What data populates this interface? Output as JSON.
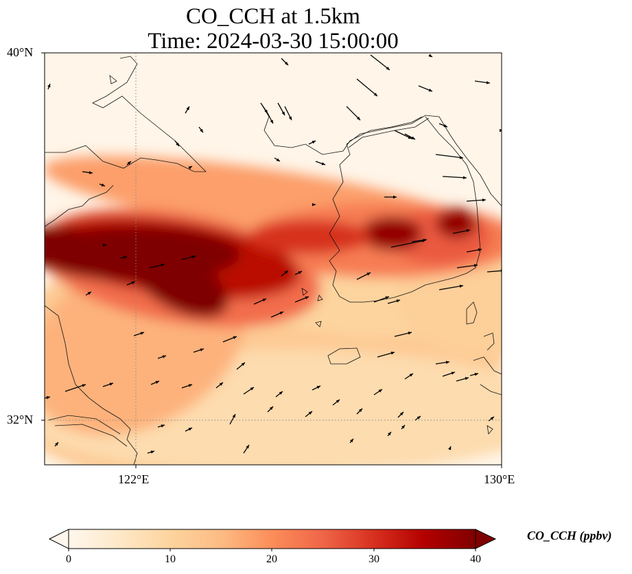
{
  "title": {
    "line1": "CO_CCH at 1.5km",
    "line2": "Time: 2024-03-30 15:00:00"
  },
  "axes": {
    "lat_ticks": [
      "40°N",
      "32°N"
    ],
    "lon_ticks": [
      "122°E",
      "130°E"
    ]
  },
  "colorbar": {
    "label": "CO_CCH (ppbv)",
    "ticks": [
      "0",
      "10",
      "20",
      "30",
      "40"
    ],
    "range": [
      0,
      40
    ],
    "colormap": "OrRd",
    "extend": "both"
  },
  "chart_data": {
    "type": "heatmap",
    "variable": "CO_CCH",
    "units": "ppbv",
    "level": "1.5km",
    "time": "2024-03-30 15:00:00",
    "lon_range": [
      120,
      130
    ],
    "lat_range": [
      31,
      40
    ],
    "value_range": [
      0,
      40
    ],
    "gridlines": {
      "lon": [
        122,
        130
      ],
      "lat": [
        32,
        40
      ],
      "style": "dotted"
    },
    "plume": {
      "description_values": "high-concentration band (>40 ppbv) extending from about 120E 35.5N to 124E 35N, weakening eastward with secondary maxima near 127.3E 35.9N and 128.9E 36.2N",
      "peak_value": 40
    },
    "wind_vectors": "present"
  },
  "colors": {
    "low": "#fff7ec",
    "mid": "#fdbb84",
    "high": "#d7301f",
    "max": "#7f0000"
  }
}
